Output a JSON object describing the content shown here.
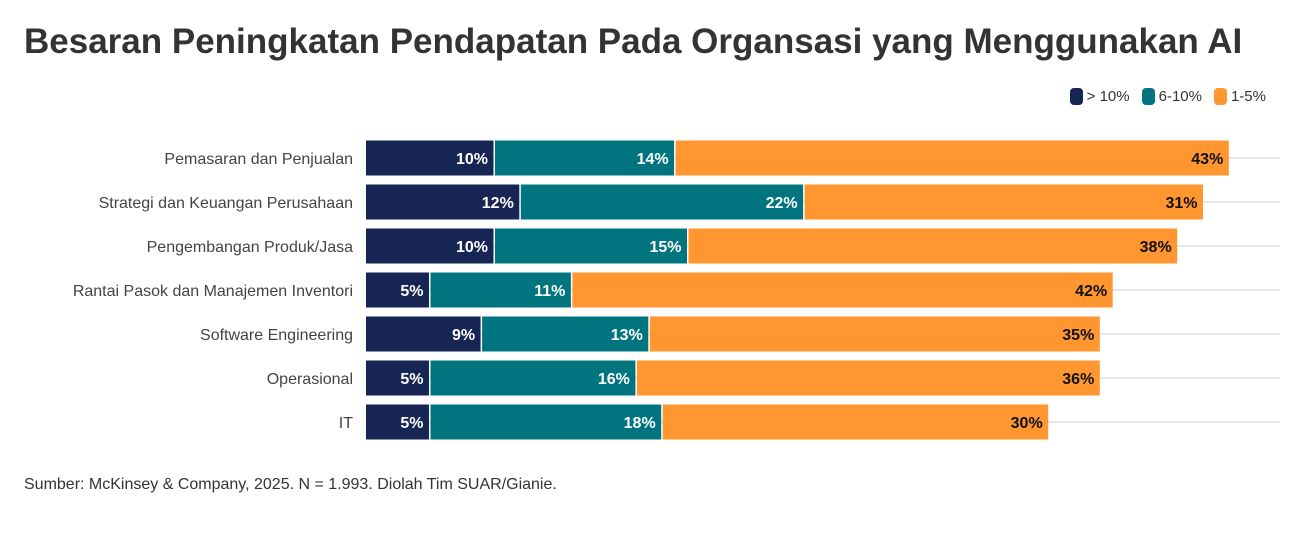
{
  "title": "Besaran Peningkatan Pendapatan Pada Organsasi yang Menggunakan AI",
  "source": "Sumber: McKinsey & Company, 2025. N = 1.993. Diolah Tim SUAR/Gianie.",
  "legend": [
    {
      "label": "> 10%",
      "color": "#172554"
    },
    {
      "label": "6-10%",
      "color": "#00747f"
    },
    {
      "label": "1-5%",
      "color": "#ff9630"
    }
  ],
  "chart_data": {
    "type": "bar",
    "orientation": "horizontal",
    "stacked": true,
    "title": "Besaran Peningkatan Pendapatan Pada Organsasi yang Menggunakan AI",
    "categories": [
      "Pemasaran dan Penjualan",
      "Strategi dan Keuangan Perusahaan",
      "Pengembangan Produk/Jasa",
      "Rantai Pasok dan Manajemen Inventori",
      "Software Engineering",
      "Operasional",
      "IT"
    ],
    "series": [
      {
        "name": "> 10%",
        "color": "#172554",
        "label_color": "#ffffff",
        "values": [
          10,
          12,
          10,
          5,
          9,
          5,
          5
        ]
      },
      {
        "name": "6-10%",
        "color": "#00747f",
        "label_color": "#ffffff",
        "values": [
          14,
          22,
          15,
          11,
          13,
          16,
          18
        ]
      },
      {
        "name": "1-5%",
        "color": "#ff9630",
        "label_color": "#111111",
        "values": [
          43,
          31,
          38,
          42,
          35,
          36,
          30
        ]
      }
    ],
    "value_suffix": "%",
    "xlim": [
      0,
      70
    ],
    "xlabel": "",
    "ylabel": "",
    "grid": true
  }
}
